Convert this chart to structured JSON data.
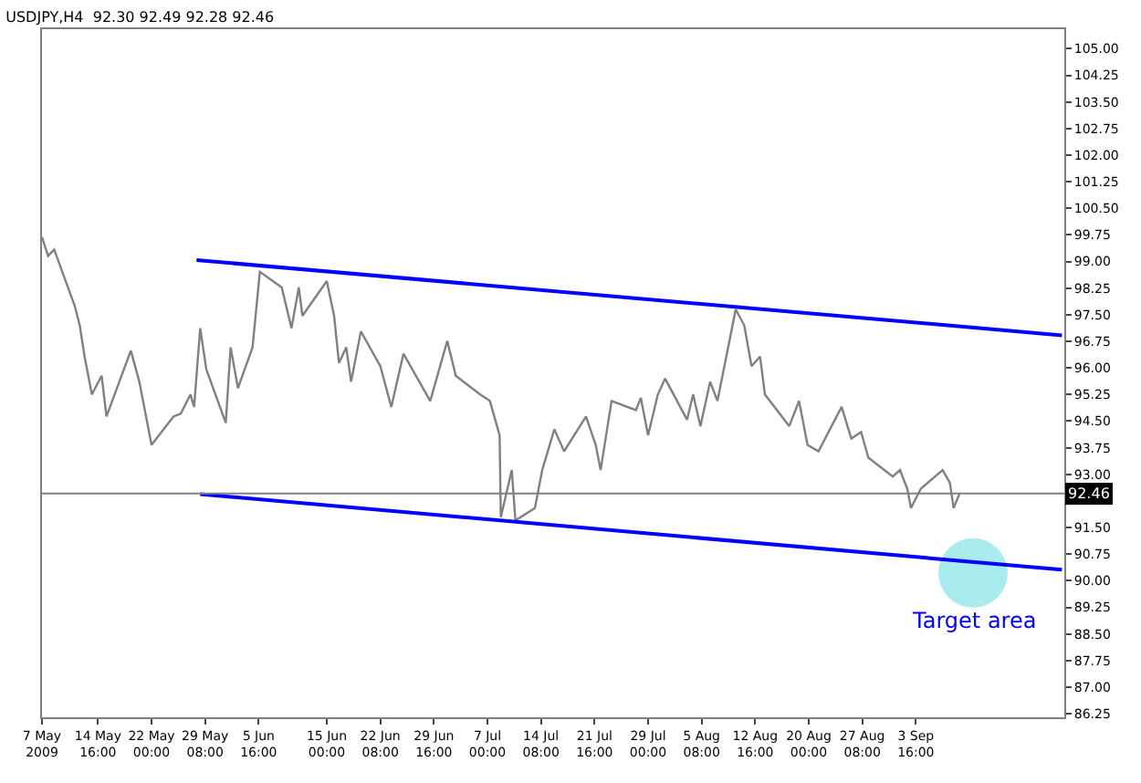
{
  "chart_data": {
    "type": "line",
    "title": "USDJPY,H4  92.30 92.49 92.28 92.46",
    "xlim": [
      "2009-05-07T00:00",
      "2009-09-24T00:00"
    ],
    "xticks": [
      {
        "value": "2009-05-07T00:00",
        "label": "7 May 2009"
      },
      {
        "value": "2009-05-14T16:00",
        "label": "14 May 16:00"
      },
      {
        "value": "2009-05-22T00:00",
        "label": "22 May 00:00"
      },
      {
        "value": "2009-05-29T08:00",
        "label": "29 May 08:00"
      },
      {
        "value": "2009-06-05T16:00",
        "label": "5 Jun 16:00"
      },
      {
        "value": "2009-06-15T00:00",
        "label": "15 Jun 00:00"
      },
      {
        "value": "2009-06-22T08:00",
        "label": "22 Jun 08:00"
      },
      {
        "value": "2009-06-29T16:00",
        "label": "29 Jun 16:00"
      },
      {
        "value": "2009-07-07T00:00",
        "label": "7 Jul 00:00"
      },
      {
        "value": "2009-07-14T08:00",
        "label": "14 Jul 08:00"
      },
      {
        "value": "2009-07-21T16:00",
        "label": "21 Jul 16:00"
      },
      {
        "value": "2009-07-29T00:00",
        "label": "29 Jul 00:00"
      },
      {
        "value": "2009-08-05T08:00",
        "label": "5 Aug 08:00"
      },
      {
        "value": "2009-08-12T16:00",
        "label": "12 Aug 16:00"
      },
      {
        "value": "2009-08-20T00:00",
        "label": "20 Aug 00:00"
      },
      {
        "value": "2009-08-27T08:00",
        "label": "27 Aug 08:00"
      },
      {
        "value": "2009-09-03T16:00",
        "label": "3 Sep 16:00"
      }
    ],
    "ylim": [
      86.15,
      105.55
    ],
    "yticks": [
      {
        "value": 105,
        "label": "105.00"
      },
      104.25,
      {
        "value": 103.5,
        "label": "103.50"
      },
      102.75,
      {
        "value": 102,
        "label": "102.00"
      },
      101.25,
      {
        "value": 100.5,
        "label": "100.50"
      },
      99.75,
      {
        "value": 99,
        "label": "99.00"
      },
      98.25,
      {
        "value": 97.5,
        "label": "97.50"
      },
      96.75,
      {
        "value": 96,
        "label": "96.00"
      },
      95.25,
      {
        "value": 94.5,
        "label": "94.50"
      },
      93.75,
      {
        "value": 93,
        "label": "93.00"
      },
      {
        "value": 92.25,
        "label": null
      },
      {
        "value": 91.5,
        "label": "91.50"
      },
      90.75,
      {
        "value": 90,
        "label": "90.00"
      },
      89.25,
      {
        "value": 88.5,
        "label": "88.50"
      },
      87.75,
      {
        "value": 87,
        "label": "87.00"
      },
      86.25
    ],
    "grid": false,
    "marker": "none",
    "line_style": "solid",
    "ref_lines": [
      {
        "axis": "y",
        "value": 92.46,
        "label": "92.46",
        "color": "#808080"
      }
    ],
    "annotations": [
      {
        "text": "Target area",
        "x": "2009-09-11T12:00",
        "y": 90.22
      }
    ],
    "series": [
      {
        "type": "scatter",
        "marker": "circle",
        "color": "#a8ecee",
        "x": [
          "2009-09-11T12:00"
        ],
        "values": [
          90.22
        ]
      },
      {
        "color": "#808080",
        "x": [
          "2009-05-07T00:00",
          "2009-05-07T20:00",
          "2009-05-08T16:00",
          "2009-05-11T12:00",
          "2009-05-12T04:00",
          "2009-05-12T20:00",
          "2009-05-13T20:00",
          "2009-05-15T04:00",
          "2009-05-15T20:00",
          "2009-05-19T04:00",
          "2009-05-20T08:00",
          "2009-05-21T00:00",
          "2009-05-22T00:00",
          "2009-05-25T00:00",
          "2009-05-26T00:00",
          "2009-05-27T08:00",
          "2009-05-27T20:00",
          "2009-05-28T16:00",
          "2009-05-29T12:00",
          "2009-06-01T04:00",
          "2009-06-01T20:00",
          "2009-06-02T20:00",
          "2009-06-04T20:00",
          "2009-06-05T20:00",
          "2009-06-08T20:00",
          "2009-06-10T04:00",
          "2009-06-11T04:00",
          "2009-06-11T16:00",
          "2009-06-15T00:00",
          "2009-06-16T00:00",
          "2009-06-16T16:00",
          "2009-06-17T16:00",
          "2009-06-18T08:00",
          "2009-06-19T16:00",
          "2009-06-22T08:00",
          "2009-06-23T20:00",
          "2009-06-25T12:00",
          "2009-06-29T04:00",
          "2009-07-01T12:00",
          "2009-07-02T16:00",
          "2009-07-06T00:00",
          "2009-07-07T08:00",
          "2009-07-08T16:00",
          "2009-07-08T20:00",
          "2009-07-10T08:00",
          "2009-07-10T20:00",
          "2009-07-13T12:00",
          "2009-07-14T12:00",
          "2009-07-16T04:00",
          "2009-07-17T12:00",
          "2009-07-20T12:00",
          "2009-07-21T20:00",
          "2009-07-22T12:00",
          "2009-07-24T00:00",
          "2009-07-27T08:00",
          "2009-07-28T00:00",
          "2009-07-29T00:00",
          "2009-07-30T08:00",
          "2009-07-31T08:00",
          "2009-08-03T08:00",
          "2009-08-04T04:00",
          "2009-08-05T04:00",
          "2009-08-06T12:00",
          "2009-08-07T12:00",
          "2009-08-10T00:00",
          "2009-08-11T04:00",
          "2009-08-12T04:00",
          "2009-08-13T08:00",
          "2009-08-14T00:00",
          "2009-08-17T08:00",
          "2009-08-18T16:00",
          "2009-08-19T20:00",
          "2009-08-21T08:00",
          "2009-08-24T12:00",
          "2009-08-25T20:00",
          "2009-08-27T04:00",
          "2009-08-28T04:00",
          "2009-08-31T12:00",
          "2009-09-01T12:00",
          "2009-09-02T12:00",
          "2009-09-03T00:00",
          "2009-09-04T08:00",
          "2009-09-07T08:00",
          "2009-09-08T08:00",
          "2009-09-08T20:00",
          "2009-09-09T16:00"
        ],
        "values": [
          99.69,
          99.16,
          99.34,
          97.74,
          97.2,
          96.32,
          95.25,
          95.78,
          94.63,
          96.49,
          95.61,
          94.9,
          93.83,
          94.63,
          94.71,
          95.25,
          94.9,
          97.12,
          95.96,
          94.45,
          96.58,
          95.43,
          96.58,
          98.71,
          98.27,
          97.12,
          98.27,
          97.47,
          98.45,
          97.47,
          96.14,
          96.58,
          95.61,
          97.03,
          96.05,
          94.9,
          96.4,
          95.07,
          96.76,
          95.78,
          95.25,
          95.07,
          94.1,
          91.79,
          93.12,
          91.7,
          92.05,
          93.12,
          94.27,
          93.65,
          94.63,
          93.83,
          93.12,
          95.07,
          94.81,
          95.16,
          94.1,
          95.25,
          95.7,
          94.54,
          95.25,
          94.36,
          95.61,
          95.07,
          97.65,
          97.2,
          96.05,
          96.32,
          95.25,
          94.36,
          95.07,
          93.83,
          93.65,
          94.9,
          94.01,
          94.19,
          93.47,
          92.94,
          93.12,
          92.59,
          92.05,
          92.59,
          93.12,
          92.76,
          92.05,
          92.46
        ]
      },
      {
        "color": "#0000ff",
        "x": [
          "2009-05-28T04:00",
          "2009-09-23T16:00"
        ],
        "values": [
          99.04,
          96.92
        ]
      },
      {
        "color": "#0000ff",
        "x": [
          "2009-05-28T16:00",
          "2009-09-23T16:00"
        ],
        "values": [
          92.44,
          90.31
        ]
      }
    ]
  }
}
